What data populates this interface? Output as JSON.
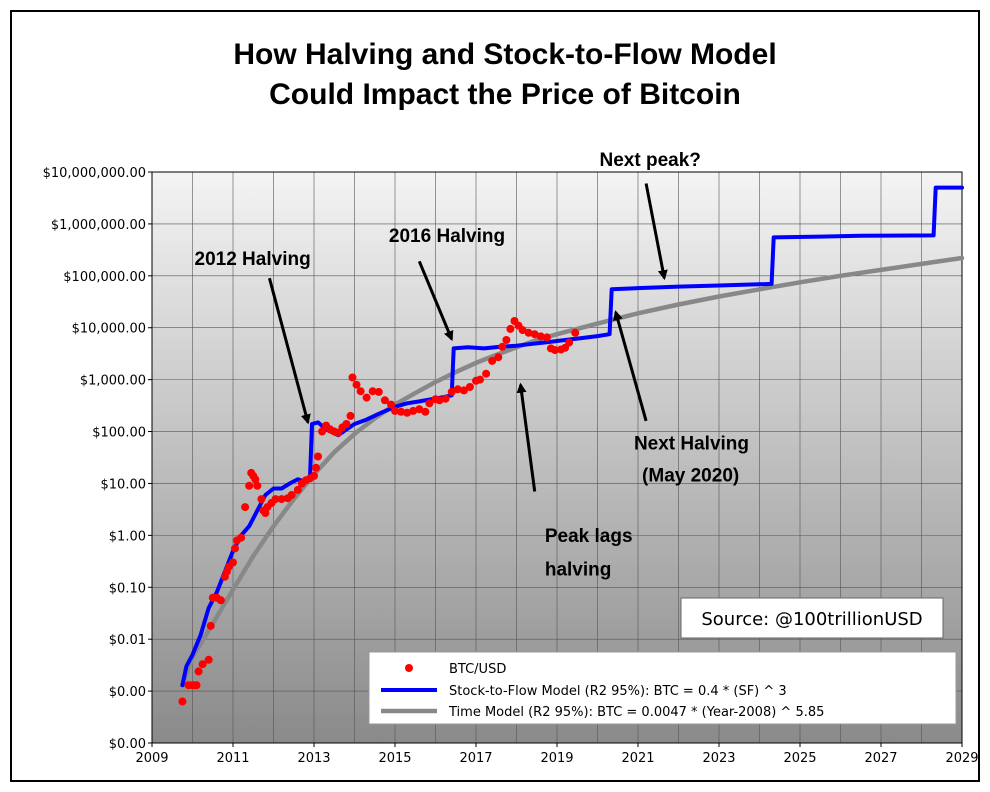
{
  "chart_data": {
    "type": "scatter",
    "title_lines": [
      "How Halving and Stock-to-Flow Model",
      "Could Impact the Price of Bitcoin"
    ],
    "y_scale": "log",
    "ylim": [
      0.0001,
      10000000
    ],
    "xlim": [
      2009,
      2029
    ],
    "y_ticks": [
      {
        "value": 0.0001,
        "label": "$0.00"
      },
      {
        "value": 0.001,
        "label": "$0.00"
      },
      {
        "value": 0.01,
        "label": "$0.01"
      },
      {
        "value": 0.1,
        "label": "$0.10"
      },
      {
        "value": 1,
        "label": "$1.00"
      },
      {
        "value": 10,
        "label": "$10.00"
      },
      {
        "value": 100,
        "label": "$100.00"
      },
      {
        "value": 1000,
        "label": "$1,000.00"
      },
      {
        "value": 10000,
        "label": "$10,000.00"
      },
      {
        "value": 100000,
        "label": "$100,000.00"
      },
      {
        "value": 1000000,
        "label": "$1,000,000.00"
      },
      {
        "value": 10000000,
        "label": "$10,000,000.00"
      }
    ],
    "x_ticks": [
      2009,
      2011,
      2013,
      2015,
      2017,
      2019,
      2021,
      2023,
      2025,
      2027,
      2029
    ],
    "x_tick_labels": [
      "2009",
      "2011",
      "2013",
      "2015",
      "2017",
      "2019",
      "2021",
      "2023",
      "2025",
      "2027",
      "2029"
    ],
    "grid": true,
    "legend_position": "bottom-right",
    "series": [
      {
        "name": "BTC/USD",
        "kind": "points",
        "color": "#ff0000",
        "points": [
          [
            2009.75,
            0.00063
          ],
          [
            2009.9,
            0.0013
          ],
          [
            2010.0,
            0.0013
          ],
          [
            2010.05,
            0.0013
          ],
          [
            2010.1,
            0.0013
          ],
          [
            2010.15,
            0.0024
          ],
          [
            2010.25,
            0.0033
          ],
          [
            2010.4,
            0.004
          ],
          [
            2010.45,
            0.018
          ],
          [
            2010.5,
            0.063
          ],
          [
            2010.6,
            0.063
          ],
          [
            2010.7,
            0.056
          ],
          [
            2010.8,
            0.16
          ],
          [
            2010.85,
            0.2
          ],
          [
            2010.9,
            0.25
          ],
          [
            2011.0,
            0.3
          ],
          [
            2011.05,
            0.56
          ],
          [
            2011.1,
            0.8
          ],
          [
            2011.2,
            0.9
          ],
          [
            2011.3,
            3.5
          ],
          [
            2011.4,
            9
          ],
          [
            2011.45,
            16
          ],
          [
            2011.5,
            14
          ],
          [
            2011.55,
            12
          ],
          [
            2011.6,
            9
          ],
          [
            2011.7,
            5
          ],
          [
            2011.75,
            3
          ],
          [
            2011.8,
            2.7
          ],
          [
            2011.85,
            3.5
          ],
          [
            2011.95,
            4.2
          ],
          [
            2012.05,
            5
          ],
          [
            2012.2,
            5
          ],
          [
            2012.35,
            5.2
          ],
          [
            2012.45,
            6
          ],
          [
            2012.6,
            7.5
          ],
          [
            2012.7,
            10
          ],
          [
            2012.8,
            11.5
          ],
          [
            2012.9,
            12.5
          ],
          [
            2013.0,
            14
          ],
          [
            2013.05,
            20
          ],
          [
            2013.1,
            33
          ],
          [
            2013.2,
            100
          ],
          [
            2013.3,
            130
          ],
          [
            2013.4,
            110
          ],
          [
            2013.5,
            100
          ],
          [
            2013.6,
            95
          ],
          [
            2013.7,
            120
          ],
          [
            2013.8,
            140
          ],
          [
            2013.9,
            200
          ],
          [
            2013.95,
            1100
          ],
          [
            2014.05,
            800
          ],
          [
            2014.15,
            600
          ],
          [
            2014.3,
            450
          ],
          [
            2014.45,
            600
          ],
          [
            2014.6,
            580
          ],
          [
            2014.75,
            400
          ],
          [
            2014.9,
            330
          ],
          [
            2015.0,
            250
          ],
          [
            2015.15,
            240
          ],
          [
            2015.3,
            230
          ],
          [
            2015.45,
            250
          ],
          [
            2015.6,
            270
          ],
          [
            2015.75,
            240
          ],
          [
            2015.85,
            350
          ],
          [
            2016.0,
            420
          ],
          [
            2016.1,
            400
          ],
          [
            2016.25,
            430
          ],
          [
            2016.4,
            580
          ],
          [
            2016.55,
            650
          ],
          [
            2016.7,
            620
          ],
          [
            2016.85,
            720
          ],
          [
            2017.0,
            950
          ],
          [
            2017.1,
            1000
          ],
          [
            2017.25,
            1300
          ],
          [
            2017.4,
            2300
          ],
          [
            2017.55,
            2700
          ],
          [
            2017.65,
            4300
          ],
          [
            2017.75,
            5800
          ],
          [
            2017.85,
            9500
          ],
          [
            2017.95,
            13500
          ],
          [
            2018.05,
            11000
          ],
          [
            2018.15,
            9000
          ],
          [
            2018.3,
            8000
          ],
          [
            2018.45,
            7500
          ],
          [
            2018.6,
            6800
          ],
          [
            2018.75,
            6500
          ],
          [
            2018.85,
            4000
          ],
          [
            2018.95,
            3700
          ],
          [
            2019.1,
            3800
          ],
          [
            2019.2,
            4100
          ],
          [
            2019.3,
            5200
          ],
          [
            2019.45,
            8000
          ]
        ]
      },
      {
        "name": "Stock-to-Flow Model (R2 95%): BTC = 0.4 * (SF) ^ 3",
        "kind": "line",
        "color": "#0000ff",
        "points": [
          [
            2009.75,
            0.0013
          ],
          [
            2009.85,
            0.003
          ],
          [
            2010.0,
            0.005
          ],
          [
            2010.2,
            0.012
          ],
          [
            2010.4,
            0.04
          ],
          [
            2010.6,
            0.08
          ],
          [
            2010.8,
            0.2
          ],
          [
            2011.0,
            0.5
          ],
          [
            2011.2,
            1.0
          ],
          [
            2011.4,
            1.5
          ],
          [
            2011.6,
            3
          ],
          [
            2011.8,
            6
          ],
          [
            2012.0,
            8
          ],
          [
            2012.2,
            8
          ],
          [
            2012.4,
            10
          ],
          [
            2012.6,
            12
          ],
          [
            2012.75,
            11
          ],
          [
            2012.9,
            13
          ],
          [
            2012.95,
            140
          ],
          [
            2013.1,
            150
          ],
          [
            2013.3,
            110
          ],
          [
            2013.6,
            85
          ],
          [
            2013.8,
            110
          ],
          [
            2014.0,
            140
          ],
          [
            2014.3,
            170
          ],
          [
            2014.6,
            220
          ],
          [
            2015.0,
            300
          ],
          [
            2015.3,
            350
          ],
          [
            2015.6,
            380
          ],
          [
            2015.9,
            420
          ],
          [
            2016.2,
            460
          ],
          [
            2016.4,
            500
          ],
          [
            2016.45,
            4000
          ],
          [
            2016.8,
            4200
          ],
          [
            2017.2,
            4000
          ],
          [
            2017.6,
            4300
          ],
          [
            2018.0,
            4500
          ],
          [
            2018.4,
            4900
          ],
          [
            2018.8,
            5300
          ],
          [
            2019.2,
            5800
          ],
          [
            2019.6,
            6300
          ],
          [
            2020.0,
            6900
          ],
          [
            2020.3,
            7500
          ],
          [
            2020.35,
            55000
          ],
          [
            2021.0,
            58000
          ],
          [
            2022.0,
            62000
          ],
          [
            2023.0,
            65000
          ],
          [
            2024.3,
            70000
          ],
          [
            2024.35,
            550000
          ],
          [
            2025.5,
            570000
          ],
          [
            2026.5,
            590000
          ],
          [
            2028.3,
            600000
          ],
          [
            2028.35,
            5000000
          ],
          [
            2029.0,
            5000000
          ]
        ]
      },
      {
        "name": "Time Model (R2 95%): BTC = 0.0047 * (Year-2008) ^ 5.85",
        "kind": "line",
        "color": "#888888",
        "points": [
          [
            2009.75,
            0.0013
          ],
          [
            2010.0,
            0.0045
          ],
          [
            2010.5,
            0.02
          ],
          [
            2011.0,
            0.09
          ],
          [
            2011.5,
            0.4
          ],
          [
            2012.0,
            1.5
          ],
          [
            2012.5,
            5
          ],
          [
            2013.0,
            15
          ],
          [
            2013.5,
            40
          ],
          [
            2014.0,
            90
          ],
          [
            2014.5,
            180
          ],
          [
            2015.0,
            330
          ],
          [
            2015.5,
            550
          ],
          [
            2016.0,
            900
          ],
          [
            2016.5,
            1400
          ],
          [
            2017.0,
            2100
          ],
          [
            2017.5,
            3000
          ],
          [
            2018.0,
            4200
          ],
          [
            2018.5,
            5800
          ],
          [
            2019.0,
            7500
          ],
          [
            2020.0,
            12000
          ],
          [
            2021.0,
            19000
          ],
          [
            2022.0,
            28000
          ],
          [
            2023.0,
            40000
          ],
          [
            2024.0,
            55000
          ],
          [
            2025.0,
            75000
          ],
          [
            2026.0,
            100000
          ],
          [
            2027.0,
            130000
          ],
          [
            2028.0,
            170000
          ],
          [
            2029.0,
            220000
          ]
        ]
      }
    ],
    "annotations": [
      {
        "id": "anno-2012-halving",
        "text": "2012 Halving",
        "text_x": 2010.05,
        "text_y": 160000,
        "arrow_from": [
          2011.9,
          90000
        ],
        "arrow_to": [
          2012.85,
          150
        ]
      },
      {
        "id": "anno-2016-halving",
        "text": "2016 Halving",
        "text_x": 2014.85,
        "text_y": 450000,
        "arrow_from": [
          2015.6,
          190000
        ],
        "arrow_to": [
          2016.4,
          6000
        ]
      },
      {
        "id": "anno-next-peak",
        "text": "Next peak?",
        "text_x": 2020.05,
        "text_y": 13000000,
        "arrow_from": [
          2021.2,
          6000000
        ],
        "arrow_to": [
          2021.65,
          90000
        ]
      },
      {
        "id": "anno-next-halving-1",
        "text": "Next Halving",
        "text_x": 2020.9,
        "text_y": 45,
        "arrow_from": [
          2021.2,
          160
        ],
        "arrow_to": [
          2020.45,
          20000
        ]
      },
      {
        "id": "anno-next-halving-2",
        "text": "(May 2020)",
        "text_x": 2021.1,
        "text_y": 11,
        "arrow_from": null,
        "arrow_to": null
      },
      {
        "id": "anno-peak-lags-1",
        "text": "Peak lags",
        "text_x": 2018.7,
        "text_y": 0.75,
        "arrow_from": [
          2018.45,
          7
        ],
        "arrow_to": [
          2018.1,
          800
        ]
      },
      {
        "id": "anno-peak-lags-2",
        "text": "halving",
        "text_x": 2018.7,
        "text_y": 0.17,
        "arrow_from": null,
        "arrow_to": null
      }
    ],
    "source_note": "Source: @100trillionUSD"
  }
}
